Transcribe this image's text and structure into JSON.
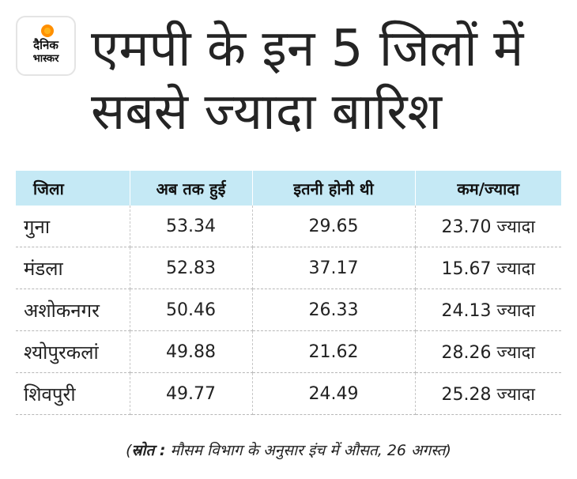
{
  "logo": {
    "line1": "दैनिक",
    "line2": "भास्कर",
    "brand_color": "#ff8f00"
  },
  "headline": {
    "line1": "एमपी के इन 5 जिलों में",
    "line2": "सबसे ज्यादा बारिश"
  },
  "table": {
    "header_color": "#c5e9f5",
    "columns": [
      "जिला",
      "अब तक हुई",
      "इतनी होनी थी",
      "कम/ज्यादा"
    ],
    "rows": [
      [
        "गुना",
        "53.34",
        "29.65",
        "23.70 ज्यादा"
      ],
      [
        "मंडला",
        "52.83",
        "37.17",
        "15.67 ज्यादा"
      ],
      [
        "अशोकनगर",
        "50.46",
        "26.33",
        "24.13 ज्यादा"
      ],
      [
        "श्योपुरकलां",
        "49.88",
        "21.62",
        "28.26 ज्यादा"
      ],
      [
        "शिवपुरी",
        "49.77",
        "24.49",
        "25.28 ज्यादा"
      ]
    ]
  },
  "source": {
    "open_paren": "(",
    "label": "स्रोत :",
    "text": " मौसम विभाग के अनुसार इंच में औसत, 26 अगस्त",
    "close_paren": ")"
  }
}
